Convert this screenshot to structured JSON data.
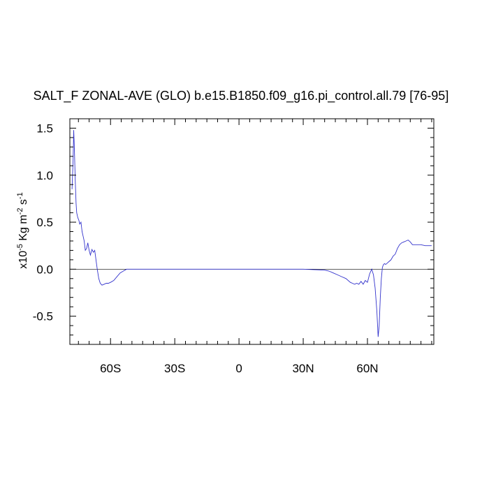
{
  "chart_data": {
    "type": "line",
    "title": "SALT_F ZONAL-AVE (GLO) b.e15.B1850.f09_g16.pi_control.all.79 [76-95]",
    "ylabel": {
      "prefix": "x10",
      "exp1": "-5",
      "mid": " Kg m",
      "exp2": "-2",
      "mid2": " s",
      "exp3": "-1"
    },
    "xlim": [
      -79,
      91
    ],
    "ylim": [
      -0.8,
      1.6
    ],
    "x_ticks": [
      {
        "value": -60,
        "label": "60S"
      },
      {
        "value": -30,
        "label": "30S"
      },
      {
        "value": 0,
        "label": "0"
      },
      {
        "value": 30,
        "label": "30N"
      },
      {
        "value": 60,
        "label": "60N"
      }
    ],
    "y_ticks": [
      {
        "value": 1.5,
        "label": "1.5"
      },
      {
        "value": 1.0,
        "label": "1.0"
      },
      {
        "value": 0.5,
        "label": "0.5"
      },
      {
        "value": 0.0,
        "label": "0.0"
      },
      {
        "value": -0.5,
        "label": "-0.5"
      }
    ],
    "zero_line": true,
    "line_color": "#3333cc",
    "series": [
      {
        "x": [
          -78.0,
          -77.5,
          -77.2,
          -76.9,
          -76.5,
          -76.1,
          -75.8,
          -75.3,
          -74.8,
          -74.4,
          -73.8,
          -73.3,
          -72.8,
          -72.3,
          -71.8,
          -71.2,
          -70.6,
          -70.0,
          -69.4,
          -68.7,
          -68.0,
          -67.4,
          -66.8,
          -66.2,
          -65.5,
          -64.8,
          -64.0,
          -63.0,
          -62.0,
          -61.0,
          -60.0,
          -58.5,
          -57.0,
          -55.5,
          -54.0,
          -52.5,
          -51.0,
          -49.5,
          -48.0,
          -46.0,
          -40.0,
          -30.0,
          -20.0,
          -10.0,
          0.0,
          10.0,
          20.0,
          30.0,
          40.0,
          42.0,
          44.0,
          46.0,
          48.0,
          50.0,
          52.0,
          53.0,
          54.0,
          55.0,
          56.0,
          57.0,
          58.0,
          59.0,
          60.0,
          61.0,
          62.0,
          62.8,
          63.6,
          64.4,
          65.0,
          65.5,
          66.0,
          66.5,
          67.0,
          67.5,
          68.0,
          68.5,
          69.0,
          69.5,
          70.0,
          71.0,
          72.0,
          73.0,
          74.0,
          75.0,
          76.0,
          77.0,
          78.0,
          79.0,
          80.0,
          81.0,
          82.0,
          83.0,
          84.0,
          85.0,
          87.0,
          89.0,
          90.0
        ],
        "y": [
          0.85,
          1.15,
          1.48,
          1.3,
          0.95,
          0.7,
          0.6,
          0.55,
          0.52,
          0.48,
          0.5,
          0.4,
          0.35,
          0.3,
          0.2,
          0.22,
          0.28,
          0.2,
          0.15,
          0.21,
          0.18,
          0.2,
          0.1,
          0.0,
          -0.1,
          -0.15,
          -0.17,
          -0.16,
          -0.15,
          -0.15,
          -0.14,
          -0.12,
          -0.08,
          -0.04,
          -0.02,
          0.0,
          0.0,
          0.0,
          0.0,
          0.0,
          0.0,
          0.0,
          0.0,
          0.0,
          0.0,
          0.0,
          0.0,
          0.0,
          -0.01,
          -0.02,
          -0.04,
          -0.06,
          -0.08,
          -0.1,
          -0.14,
          -0.15,
          -0.16,
          -0.15,
          -0.16,
          -0.13,
          -0.16,
          -0.12,
          -0.14,
          -0.05,
          0.0,
          -0.06,
          -0.2,
          -0.45,
          -0.72,
          -0.6,
          -0.3,
          -0.1,
          0.02,
          0.05,
          0.06,
          0.05,
          0.06,
          0.07,
          0.08,
          0.1,
          0.14,
          0.16,
          0.22,
          0.26,
          0.28,
          0.29,
          0.3,
          0.31,
          0.29,
          0.26,
          0.26,
          0.26,
          0.26,
          0.26,
          0.25,
          0.25,
          0.25
        ]
      }
    ]
  }
}
